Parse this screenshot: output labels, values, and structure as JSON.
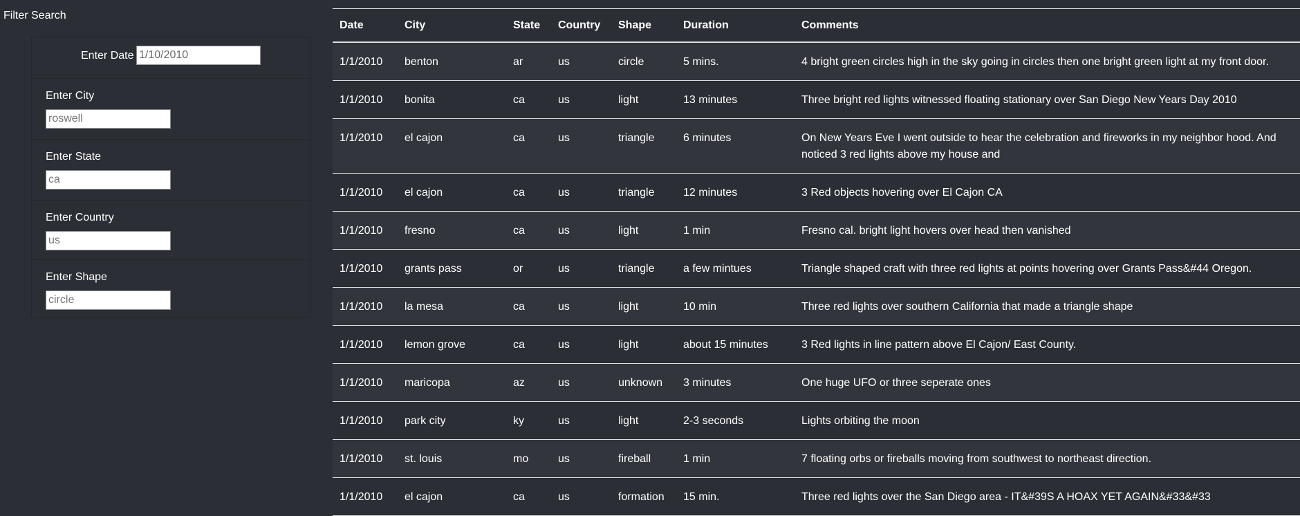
{
  "sidebar": {
    "title": "Filter Search",
    "filters": {
      "date": {
        "label": "Enter Date",
        "value": "1/10/2010"
      },
      "city": {
        "label": "Enter City",
        "placeholder": "roswell"
      },
      "state": {
        "label": "Enter State",
        "placeholder": "ca"
      },
      "country": {
        "label": "Enter Country",
        "placeholder": "us"
      },
      "shape": {
        "label": "Enter Shape",
        "placeholder": "circle"
      }
    }
  },
  "table": {
    "headers": [
      "Date",
      "City",
      "State",
      "Country",
      "Shape",
      "Duration",
      "Comments"
    ],
    "rows": [
      [
        "1/1/2010",
        "benton",
        "ar",
        "us",
        "circle",
        "5 mins.",
        "4 bright green circles high in the sky going in circles then one bright green light at my front door."
      ],
      [
        "1/1/2010",
        "bonita",
        "ca",
        "us",
        "light",
        "13 minutes",
        "Three bright red lights witnessed floating stationary over San Diego New Years Day 2010"
      ],
      [
        "1/1/2010",
        "el cajon",
        "ca",
        "us",
        "triangle",
        "6 minutes",
        "On New Years Eve I went outside to hear the celebration and fireworks in my neighbor hood. And noticed 3 red lights above my house and"
      ],
      [
        "1/1/2010",
        "el cajon",
        "ca",
        "us",
        "triangle",
        "12 minutes",
        "3 Red objects hovering over El Cajon CA"
      ],
      [
        "1/1/2010",
        "fresno",
        "ca",
        "us",
        "light",
        "1 min",
        "Fresno cal. bright light hovers over head then vanished"
      ],
      [
        "1/1/2010",
        "grants pass",
        "or",
        "us",
        "triangle",
        "a few mintues",
        "Triangle shaped craft with three red lights at points hovering over Grants Pass&#44 Oregon."
      ],
      [
        "1/1/2010",
        "la mesa",
        "ca",
        "us",
        "light",
        "10 min",
        "Three red lights over southern California that made a triangle shape"
      ],
      [
        "1/1/2010",
        "lemon grove",
        "ca",
        "us",
        "light",
        "about 15 minutes",
        "3 Red lights in line pattern above El Cajon/ East County."
      ],
      [
        "1/1/2010",
        "maricopa",
        "az",
        "us",
        "unknown",
        "3 minutes",
        "One huge UFO or three seperate ones"
      ],
      [
        "1/1/2010",
        "park city",
        "ky",
        "us",
        "light",
        "2-3 seconds",
        "Lights orbiting the moon"
      ],
      [
        "1/1/2010",
        "st. louis",
        "mo",
        "us",
        "fireball",
        "1 min",
        "7 floating orbs or fireballs moving from southwest to northeast direction."
      ],
      [
        "1/1/2010",
        "el cajon",
        "ca",
        "us",
        "formation",
        "15 min.",
        "Three red lights over the San Diego area - IT&#39S A HOAX YET AGAIN&#33&#33"
      ]
    ]
  }
}
